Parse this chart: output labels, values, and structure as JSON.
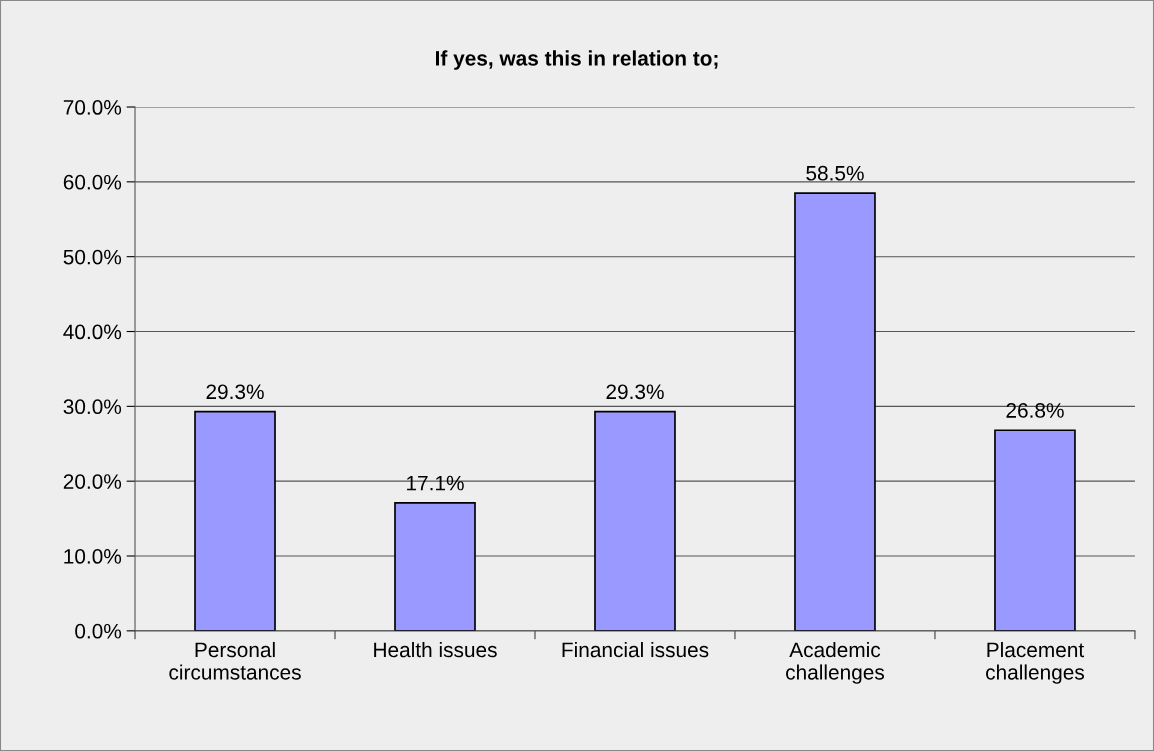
{
  "chart_data": {
    "type": "bar",
    "title": "If yes, was this in relation to;",
    "categories": [
      "Personal\ncircumstances",
      "Health issues",
      "Financial issues",
      "Academic\nchallenges",
      "Placement\nchallenges"
    ],
    "values": [
      29.3,
      17.1,
      29.3,
      58.5,
      26.8
    ],
    "value_labels": [
      "29.3%",
      "17.1%",
      "29.3%",
      "58.5%",
      "26.8%"
    ],
    "color": "#9999ff",
    "ylim": [
      0,
      70
    ],
    "yticks": [
      {
        "value": 0,
        "label": "0.0%"
      },
      {
        "value": 10,
        "label": "10.0%"
      },
      {
        "value": 20,
        "label": "20.0%"
      },
      {
        "value": 30,
        "label": "30.0%"
      },
      {
        "value": 40,
        "label": "40.0%"
      },
      {
        "value": 50,
        "label": "50.0%"
      },
      {
        "value": 60,
        "label": "60.0%"
      },
      {
        "value": 70,
        "label": "70.0%"
      }
    ],
    "grid": "y",
    "legend": false
  }
}
